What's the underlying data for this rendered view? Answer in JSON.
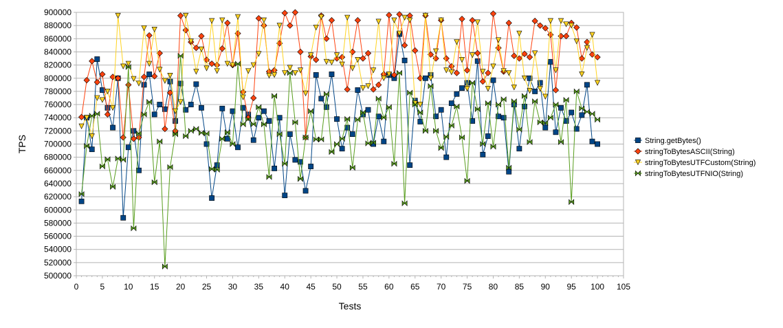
{
  "chart_data": {
    "type": "line",
    "title": "",
    "xlabel": "Tests",
    "ylabel": "TPS",
    "xlim": [
      0,
      105
    ],
    "ylim": [
      500000,
      900000
    ],
    "x_ticks": [
      0,
      5,
      10,
      15,
      20,
      25,
      30,
      35,
      40,
      45,
      50,
      55,
      60,
      65,
      70,
      75,
      80,
      85,
      90,
      95,
      100,
      105
    ],
    "y_ticks": [
      500000,
      520000,
      540000,
      560000,
      580000,
      600000,
      620000,
      640000,
      660000,
      680000,
      700000,
      720000,
      740000,
      760000,
      780000,
      800000,
      820000,
      840000,
      860000,
      880000,
      900000
    ],
    "x_tick_labels": [
      "0",
      "5",
      "10",
      "15",
      "20",
      "25",
      "30",
      "35",
      "40",
      "45",
      "50",
      "55",
      "60",
      "65",
      "70",
      "75",
      "80",
      "85",
      "90",
      "95",
      "100",
      "105"
    ],
    "y_tick_labels": [
      "500000",
      "520000",
      "540000",
      "560000",
      "580000",
      "600000",
      "620000",
      "640000",
      "660000",
      "680000",
      "700000",
      "720000",
      "740000",
      "760000",
      "780000",
      "800000",
      "820000",
      "840000",
      "860000",
      "880000",
      "900000"
    ],
    "grid": "horizontal",
    "legend_position": "right",
    "x": [
      1,
      2,
      3,
      4,
      5,
      6,
      7,
      8,
      9,
      10,
      11,
      12,
      13,
      14,
      15,
      16,
      17,
      18,
      19,
      20,
      21,
      22,
      23,
      24,
      25,
      26,
      27,
      28,
      29,
      30,
      31,
      32,
      33,
      34,
      35,
      36,
      37,
      38,
      39,
      40,
      41,
      42,
      43,
      44,
      45,
      46,
      47,
      48,
      49,
      50,
      51,
      52,
      53,
      54,
      55,
      56,
      57,
      58,
      59,
      60,
      61,
      62,
      63,
      64,
      65,
      66,
      67,
      68,
      69,
      70,
      71,
      72,
      73,
      74,
      75,
      76,
      77,
      78,
      79,
      80,
      81,
      82,
      83,
      84,
      85,
      86,
      87,
      88,
      89,
      90,
      91,
      92,
      93,
      94,
      95,
      96,
      97,
      98,
      99,
      100
    ],
    "series": [
      {
        "name": "String.getBytes()",
        "color": "#004586",
        "marker": "square",
        "values": [
          613000,
          740000,
          692000,
          829000,
          782000,
          755000,
          725000,
          800000,
          588000,
          695000,
          720000,
          660000,
          790000,
          806000,
          745000,
          760000,
          753000,
          795000,
          735000,
          792000,
          752000,
          760000,
          791000,
          755000,
          700000,
          618000,
          668000,
          754000,
          708000,
          750000,
          695000,
          755000,
          745000,
          706000,
          740000,
          750000,
          735000,
          663000,
          740000,
          622000,
          715000,
          676000,
          673000,
          629000,
          666000,
          805000,
          769000,
          756000,
          806000,
          738000,
          693000,
          725000,
          715000,
          782000,
          745000,
          752000,
          700000,
          742000,
          704000,
          805000,
          800000,
          867000,
          827000,
          668000,
          766000,
          734000,
          800000,
          805000,
          742000,
          752000,
          680000,
          762000,
          776000,
          785000,
          793000,
          735000,
          826000,
          684000,
          712000,
          797000,
          742000,
          740000,
          658000,
          760000,
          693000,
          757000,
          800000,
          780000,
          793000,
          725000,
          825000,
          718000,
          755000,
          735000,
          748000,
          723000,
          744000,
          790000,
          704000,
          700000
        ]
      },
      {
        "name": "stringToBytesASCII(String)",
        "color": "#ff420e",
        "marker": "diamond",
        "values": [
          741000,
          797000,
          826000,
          794000,
          806000,
          745000,
          802000,
          800000,
          710000,
          790000,
          708000,
          710000,
          802000,
          865000,
          803000,
          838000,
          723000,
          778000,
          720000,
          895000,
          873000,
          855000,
          846000,
          864000,
          828000,
          822000,
          820000,
          845000,
          884000,
          820000,
          868000,
          779000,
          740000,
          770000,
          891000,
          880000,
          810000,
          812000,
          853000,
          899000,
          880000,
          900000,
          840000,
          710000,
          833000,
          828000,
          895000,
          860000,
          888000,
          830000,
          832000,
          783000,
          840000,
          888000,
          830000,
          838000,
          783000,
          790000,
          806000,
          896000,
          805000,
          897000,
          850000,
          895000,
          842000,
          800000,
          895000,
          836000,
          830000,
          888000,
          830000,
          818000,
          808000,
          890000,
          812000,
          888000,
          838000,
          795000,
          808000,
          898000,
          846000,
          810000,
          884000,
          834000,
          830000,
          837000,
          832000,
          887000,
          880000,
          876000,
          866000,
          782000,
          864000,
          864000,
          884000,
          877000,
          830000,
          855000,
          836000,
          832000
        ]
      },
      {
        "name": "stringToBytesUTFCustom(String)",
        "color": "#ffd320",
        "marker": "triangle-down",
        "values": [
          727000,
          740000,
          712000,
          770000,
          767000,
          780000,
          755000,
          895000,
          818000,
          822000,
          799000,
          792000,
          876000,
          822000,
          874000,
          813000,
          796000,
          804000,
          750000,
          764000,
          895000,
          856000,
          810000,
          844000,
          815000,
          887000,
          811000,
          888000,
          822000,
          820000,
          893000,
          771000,
          811000,
          820000,
          837000,
          888000,
          804000,
          805000,
          880000,
          808000,
          816000,
          808000,
          812000,
          777000,
          835000,
          877000,
          893000,
          825000,
          824000,
          835000,
          821000,
          892000,
          815000,
          828000,
          785000,
          788000,
          812000,
          886000,
          800000,
          806000,
          888000,
          868000,
          892000,
          888000,
          762000,
          760000,
          895000,
          800000,
          841000,
          888000,
          812000,
          809000,
          855000,
          828000,
          784000,
          835000,
          885000,
          810000,
          784000,
          818000,
          858000,
          811000,
          808000,
          786000,
          868000,
          800000,
          781000,
          838000,
          784000,
          772000,
          887000,
          812000,
          887000,
          882000,
          880000,
          856000,
          806000,
          846000,
          866000,
          793000
        ]
      },
      {
        "name": "stringToBytesUTFNIO(String)",
        "color": "#579d1c",
        "marker": "bowtie",
        "values": [
          624000,
          697000,
          743000,
          746000,
          666000,
          677000,
          635000,
          678000,
          676000,
          817000,
          572000,
          716000,
          745000,
          764000,
          642000,
          704000,
          514000,
          665000,
          715000,
          834000,
          712000,
          720000,
          723000,
          717000,
          716000,
          662000,
          661000,
          708000,
          718000,
          700000,
          822000,
          730000,
          738000,
          730000,
          756000,
          730000,
          650000,
          773000,
          715000,
          670000,
          808000,
          733000,
          647000,
          710000,
          750000,
          707000,
          707000,
          776000,
          688000,
          700000,
          708000,
          738000,
          664000,
          737000,
          748000,
          701000,
          702000,
          769000,
          740000,
          756000,
          670000,
          808000,
          610000,
          778000,
          760000,
          748000,
          720000,
          788000,
          720000,
          694000,
          711000,
          728000,
          757000,
          710000,
          644000,
          793000,
          753000,
          700000,
          762000,
          696000,
          760000,
          768000,
          664000,
          765000,
          722000,
          773000,
          703000,
          765000,
          733000,
          732000,
          740000,
          760000,
          703000,
          767000,
          612000,
          780000,
          754000,
          749000,
          746000,
          737000
        ]
      }
    ]
  }
}
